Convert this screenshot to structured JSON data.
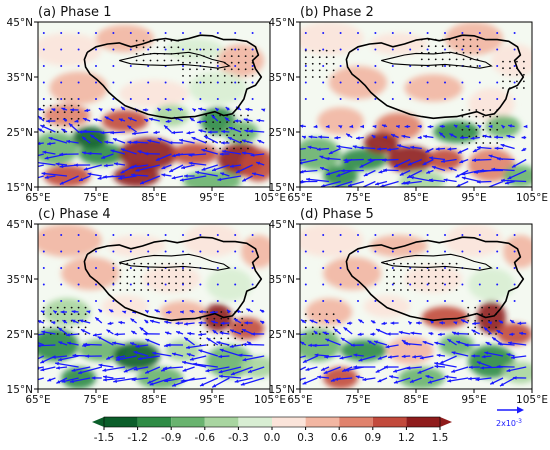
{
  "chart_data": {
    "type": "heatmap",
    "panels": [
      {
        "title": "(a) Phase 1"
      },
      {
        "title": "(b) Phase 2"
      },
      {
        "title": "(c) Phase 4"
      },
      {
        "title": "(d) Phase 5"
      }
    ],
    "x_ticks": [
      "65°E",
      "75°E",
      "85°E",
      "95°E",
      "105°E"
    ],
    "y_ticks": [
      "45°N",
      "35°N",
      "25°N",
      "15°N"
    ],
    "xlim": [
      65,
      105
    ],
    "ylim": [
      15,
      45
    ],
    "colorbar": {
      "levels": [
        "-1.5",
        "-1.2",
        "-0.9",
        "-0.6",
        "-0.3",
        "0.0",
        "0.3",
        "0.6",
        "0.9",
        "1.2",
        "1.5"
      ],
      "colors": [
        "#0b5e2a",
        "#2e8b45",
        "#69b36f",
        "#a8d5a0",
        "#d8eed3",
        "#fbe4da",
        "#f2b6a2",
        "#e0826c",
        "#c24a3c",
        "#8f1c1c"
      ],
      "extend": "both"
    },
    "reference_vector": {
      "label_prefix": "2x10",
      "label_exponent": "-3",
      "color": "#1a1aff"
    },
    "colors": {
      "vector": "#1a1aff",
      "boundary": "#000000",
      "background": "#f4f9f1"
    }
  }
}
